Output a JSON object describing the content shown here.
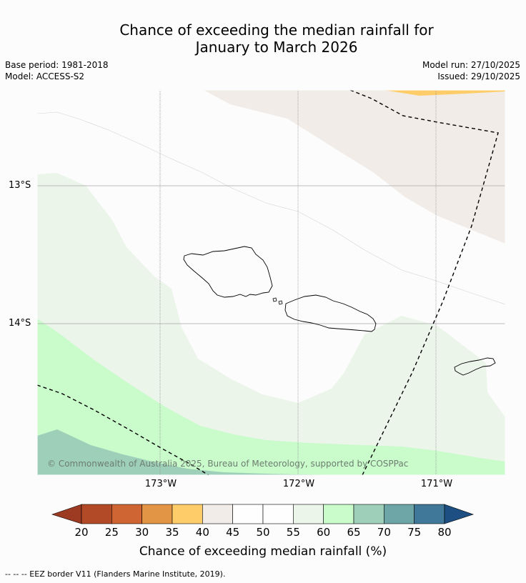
{
  "title": {
    "line1": "Chance of exceeding the median rainfall for",
    "line2": "January to March 2026"
  },
  "meta": {
    "base_period": "Base period: 1981-2018",
    "model": "Model: ACCESS-S2",
    "model_run": "Model run: 27/10/2025",
    "issued": "Issued: 29/10/2025"
  },
  "axes": {
    "lat_labels": [
      "13°S",
      "14°S"
    ],
    "lon_labels": [
      "173°W",
      "172°W",
      "171°W"
    ]
  },
  "copyright": "© Commonwealth of Australia 2025, Bureau of Meteorology, supported by COSPPac",
  "colorbar": {
    "title": "Chance of exceeding median rainfall (%)",
    "ticks": [
      "20",
      "25",
      "30",
      "35",
      "40",
      "45",
      "50",
      "55",
      "60",
      "65",
      "70",
      "75",
      "80"
    ],
    "under_color": "#9c3a22",
    "over_color": "#1d4f83",
    "colors": [
      "#b34a27",
      "#cf6532",
      "#e29645",
      "#fecd6a",
      "#f1ece8",
      "#fdfefd",
      "#fdfefd",
      "#ebf5ea",
      "#c9fbcb",
      "#9ecfb9",
      "#6ea5a7",
      "#40789a"
    ]
  },
  "zone_colors": {
    "band_35_40": "#fecd6a",
    "band_40_45": "#f1ece8",
    "band_55_60": "#ebf5ea",
    "band_60_65": "#c9fbcb",
    "band_65_70": "#9ecfb9"
  },
  "footnote": "--  --  -- EEZ border V11 (Flanders Marine Institute, 2019)."
}
